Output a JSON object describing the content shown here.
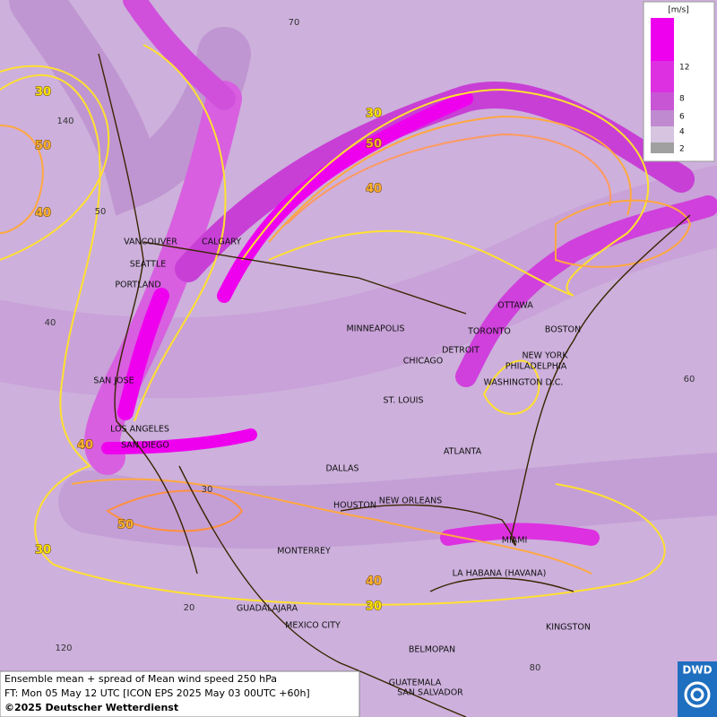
{
  "legend": {
    "unit": "[m/s]",
    "labels": [
      12,
      8,
      6,
      4,
      2
    ]
  },
  "cities": [
    "VANCOUVER",
    "CALGARY",
    "SEATTLE",
    "PORTLAND",
    "MINNEAPOLIS",
    "OTTAWA",
    "TORONTO",
    "BOSTON",
    "DETROIT",
    "NEW YORK",
    "CHICAGO",
    "PHILADELPHIA",
    "SAN JOSE",
    "WASHINGTON D.C.",
    "ST. LOUIS",
    "LOS ANGELES",
    "SAN DIEGO",
    "ATLANTA",
    "DALLAS",
    "HOUSTON",
    "NEW ORLEANS",
    "MIAMI",
    "MONTERREY",
    "LA HABANA (HAVANA)",
    "GUADALAJARA",
    "MEXICO CITY",
    "KINGSTON",
    "BELMOPAN",
    "GUATEMALA",
    "SAN SALVADOR"
  ],
  "grid_labels": [
    70,
    140,
    50,
    40,
    30,
    20,
    120,
    80,
    60
  ],
  "contour_labels": [
    30,
    50,
    40,
    30,
    50,
    40,
    40,
    50,
    30,
    40,
    30
  ],
  "caption": {
    "line1": "Ensemble mean + spread of Mean wind speed 250 hPa",
    "line2": "FT: Mon 05 May 12 UTC [ICON EPS 2025 May 03 00UTC +60h]",
    "line3": "©2025 Deutscher Wetterdienst"
  },
  "logo": "DWD"
}
